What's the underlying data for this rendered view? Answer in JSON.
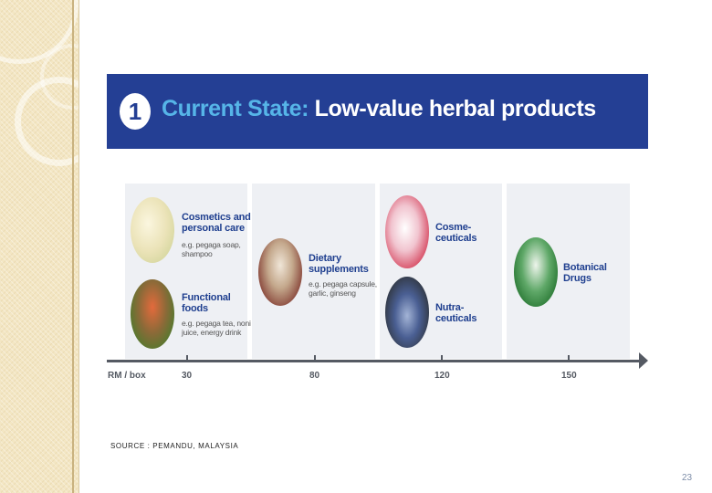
{
  "banner": {
    "number": "1",
    "title_part1": "Current State:",
    "title_part2": "Low-value herbal products"
  },
  "categories": {
    "cosmetics": {
      "title_line1": "Cosmetics and",
      "title_line2": "personal care",
      "example_line1": "e.g. pegaga soap,",
      "example_line2": "shampoo"
    },
    "functional": {
      "title_line1": "Functional",
      "title_line2": "foods",
      "example_line1": "e.g. pegaga tea, noni",
      "example_line2": "juice, energy drink"
    },
    "dietary": {
      "title_line1": "Dietary",
      "title_line2": "supplements",
      "example_line1": "e.g. pegaga capsule,",
      "example_line2": "garlic, ginseng"
    },
    "cosmeceuticals": {
      "title_line1": "Cosme-",
      "title_line2": "ceuticals"
    },
    "nutraceuticals": {
      "title_line1": "Nutra-",
      "title_line2": "ceuticals"
    },
    "botanical": {
      "title_line1": "Botanical",
      "title_line2": "Drugs"
    }
  },
  "axis": {
    "unit_label": "RM / box",
    "ticks": [
      "30",
      "80",
      "120",
      "150"
    ]
  },
  "source": "SOURCE : PEMANDU, MALAYSIA",
  "page_number": "23"
}
